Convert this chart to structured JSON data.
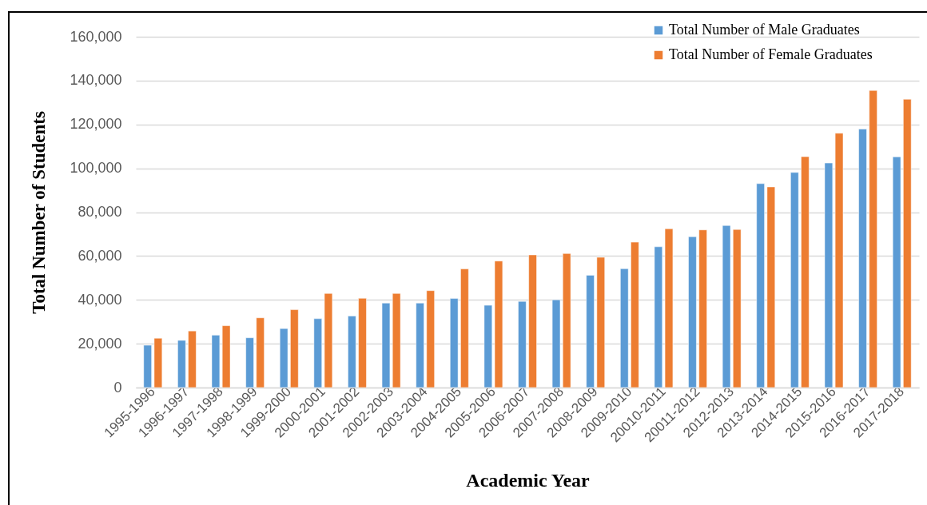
{
  "chart_data": {
    "type": "bar",
    "xlabel": "Academic Year",
    "ylabel": "Total Number of Students",
    "categories": [
      "1995-1996",
      "1996-1997",
      "1997-1998",
      "1998-1999",
      "1999-2000",
      "2000-2001",
      "2001-2002",
      "2002-2003",
      "2003-2004",
      "2004-2005",
      "2005-2006",
      "2006-2007",
      "2007-2008",
      "2008-2009",
      "2009-2010",
      "20010-2011",
      "20011-2012",
      "2012-2013",
      "2013-2014",
      "2014-2015",
      "2015-2016",
      "2016-2017",
      "2017-2018"
    ],
    "series": [
      {
        "name": "Total Number of Male Graduates",
        "color": "#5b9bd5",
        "values": [
          19300,
          21500,
          23900,
          22700,
          26900,
          31400,
          32600,
          38500,
          38500,
          40600,
          37500,
          39300,
          40000,
          51200,
          54200,
          64200,
          68800,
          73900,
          93000,
          98100,
          102400,
          117900,
          105200
        ]
      },
      {
        "name": "Total Number of Female Graduates",
        "color": "#ed7d31",
        "values": [
          22500,
          25800,
          28200,
          31800,
          35500,
          42900,
          40700,
          42900,
          44200,
          54100,
          57700,
          60500,
          61100,
          59400,
          66300,
          72400,
          71900,
          72100,
          91500,
          105300,
          116000,
          135500,
          131500
        ]
      }
    ],
    "ylim": [
      0,
      160000
    ],
    "yticks": [
      0,
      {
        "value": 20000,
        "label": "20,000"
      },
      {
        "value": 40000,
        "label": "40,000"
      },
      {
        "value": 60000,
        "label": "60,000"
      },
      {
        "value": 80000,
        "label": "80,000"
      },
      {
        "value": 100000,
        "label": "100,000"
      },
      {
        "value": 120000,
        "label": "120,000"
      },
      {
        "value": 140000,
        "label": "140,000"
      },
      {
        "value": 160000,
        "label": "160,000"
      }
    ],
    "grid": "y",
    "legend": "top right"
  }
}
